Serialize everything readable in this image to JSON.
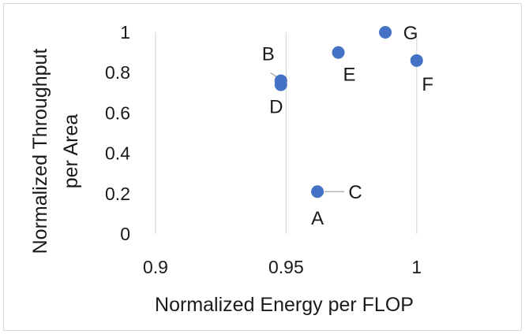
{
  "chart_data": {
    "type": "scatter",
    "title": "",
    "xlabel": "Normalized Energy per FLOP",
    "ylabel": [
      "Normalized Throughput",
      "per Area"
    ],
    "xlim": [
      0.9,
      1.03
    ],
    "ylim": [
      0,
      1
    ],
    "x_ticks": [
      0.9,
      0.95,
      1.0
    ],
    "x_tick_labels": [
      "0.9",
      "0.95",
      "1"
    ],
    "y_ticks": [
      0,
      0.2,
      0.4,
      0.6,
      0.8,
      1.0
    ],
    "y_tick_labels": [
      "0",
      "0.2",
      "0.4",
      "0.6",
      "0.8",
      "1"
    ],
    "grid": "vertical gridlines only",
    "legend": "none",
    "marker_color": "#4472c4",
    "points": [
      {
        "label": "A",
        "x": 0.962,
        "y": 0.21
      },
      {
        "label": "C",
        "x": 0.962,
        "y": 0.21
      },
      {
        "label": "B",
        "x": 0.948,
        "y": 0.76
      },
      {
        "label": "D",
        "x": 0.948,
        "y": 0.74
      },
      {
        "label": "E",
        "x": 0.97,
        "y": 0.9
      },
      {
        "label": "G",
        "x": 0.988,
        "y": 1.0
      },
      {
        "label": "F",
        "x": 1.0,
        "y": 0.86
      }
    ]
  }
}
